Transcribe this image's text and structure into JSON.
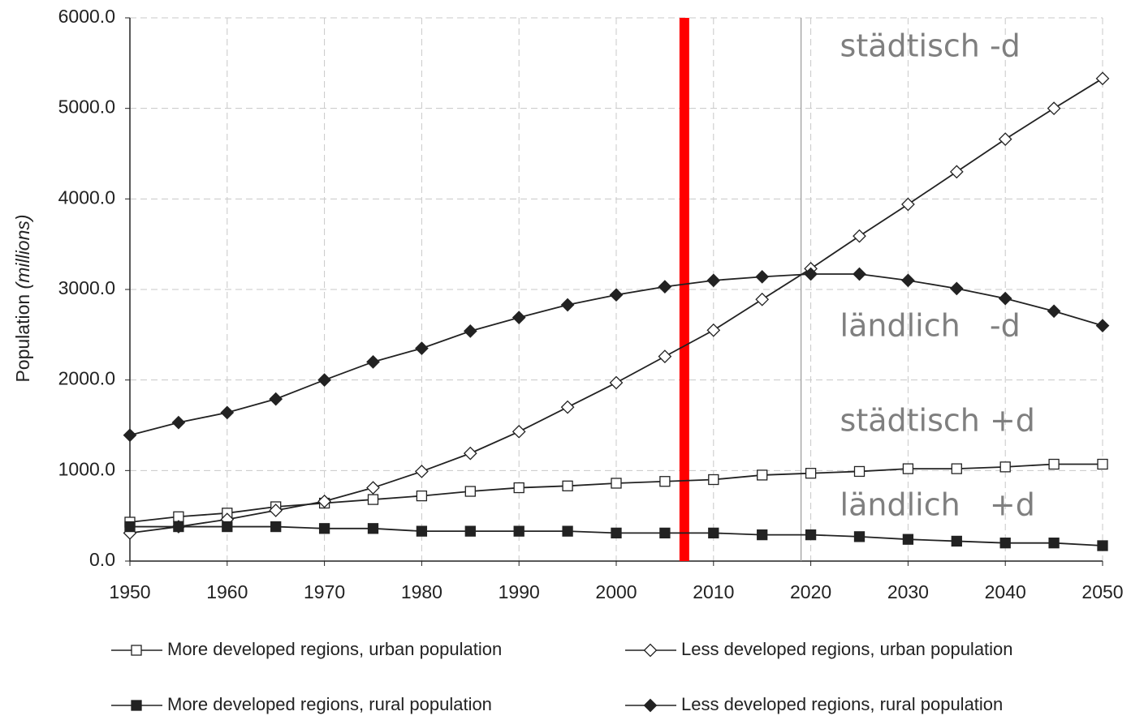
{
  "chart_data": {
    "type": "line",
    "ylabel": "Population",
    "ylabel_unit": "(millions)",
    "x": [
      1950,
      1955,
      1960,
      1965,
      1970,
      1975,
      1980,
      1985,
      1990,
      1995,
      2000,
      2005,
      2010,
      2015,
      2020,
      2025,
      2030,
      2035,
      2040,
      2045,
      2050
    ],
    "series": [
      {
        "name": "More developed regions, urban population",
        "color": "#222222",
        "marker": "square",
        "filled": false,
        "values": [
          430,
          490,
          530,
          600,
          640,
          680,
          720,
          770,
          810,
          830,
          860,
          880,
          900,
          950,
          970,
          990,
          1020,
          1020,
          1040,
          1070,
          1070
        ]
      },
      {
        "name": "Less developed regions, urban population",
        "color": "#222222",
        "marker": "diamond",
        "filled": false,
        "values": [
          310,
          380,
          460,
          560,
          660,
          810,
          990,
          1190,
          1430,
          1700,
          1970,
          2260,
          2550,
          2890,
          3230,
          3590,
          3940,
          4300,
          4660,
          5000,
          5330
        ]
      },
      {
        "name": "More developed regions, rural population",
        "color": "#222222",
        "marker": "square",
        "filled": true,
        "values": [
          380,
          380,
          380,
          380,
          360,
          360,
          330,
          330,
          330,
          330,
          310,
          310,
          310,
          290,
          290,
          270,
          240,
          220,
          200,
          200,
          170
        ]
      },
      {
        "name": "Less developed regions, rural population",
        "color": "#222222",
        "marker": "diamond",
        "filled": true,
        "values": [
          1390,
          1530,
          1640,
          1790,
          2000,
          2200,
          2350,
          2540,
          2690,
          2830,
          2940,
          3030,
          3100,
          3140,
          3170,
          3170,
          3100,
          3010,
          2900,
          2760,
          2600
        ]
      }
    ],
    "xlim": [
      1950,
      2050
    ],
    "xticks": [
      1950,
      1960,
      1970,
      1980,
      1990,
      2000,
      2010,
      2020,
      2030,
      2040,
      2050
    ],
    "ylim": [
      0,
      6000
    ],
    "yticks": [
      {
        "value": 0,
        "label": "0.0"
      },
      {
        "value": 1000,
        "label": "1000.0"
      },
      {
        "value": 2000,
        "label": "2000.0"
      },
      {
        "value": 3000,
        "label": "3000.0"
      },
      {
        "value": 4000,
        "label": "4000.0"
      },
      {
        "value": 5000,
        "label": "5000.0"
      },
      {
        "value": 6000,
        "label": "6000.0"
      }
    ],
    "grid": true,
    "vlines": [
      {
        "x": 2007,
        "color": "#ff0000"
      },
      {
        "x": 2019,
        "color": "#999999"
      }
    ],
    "annotations": [
      {
        "text": "städtisch -d",
        "x": 2023,
        "y": 5670
      },
      {
        "text": "ländlich   -d",
        "x": 2023,
        "y": 2580
      },
      {
        "text": "städtisch +d",
        "x": 2023,
        "y": 1530
      },
      {
        "text": "ländlich   +d",
        "x": 2023,
        "y": 600
      }
    ]
  }
}
